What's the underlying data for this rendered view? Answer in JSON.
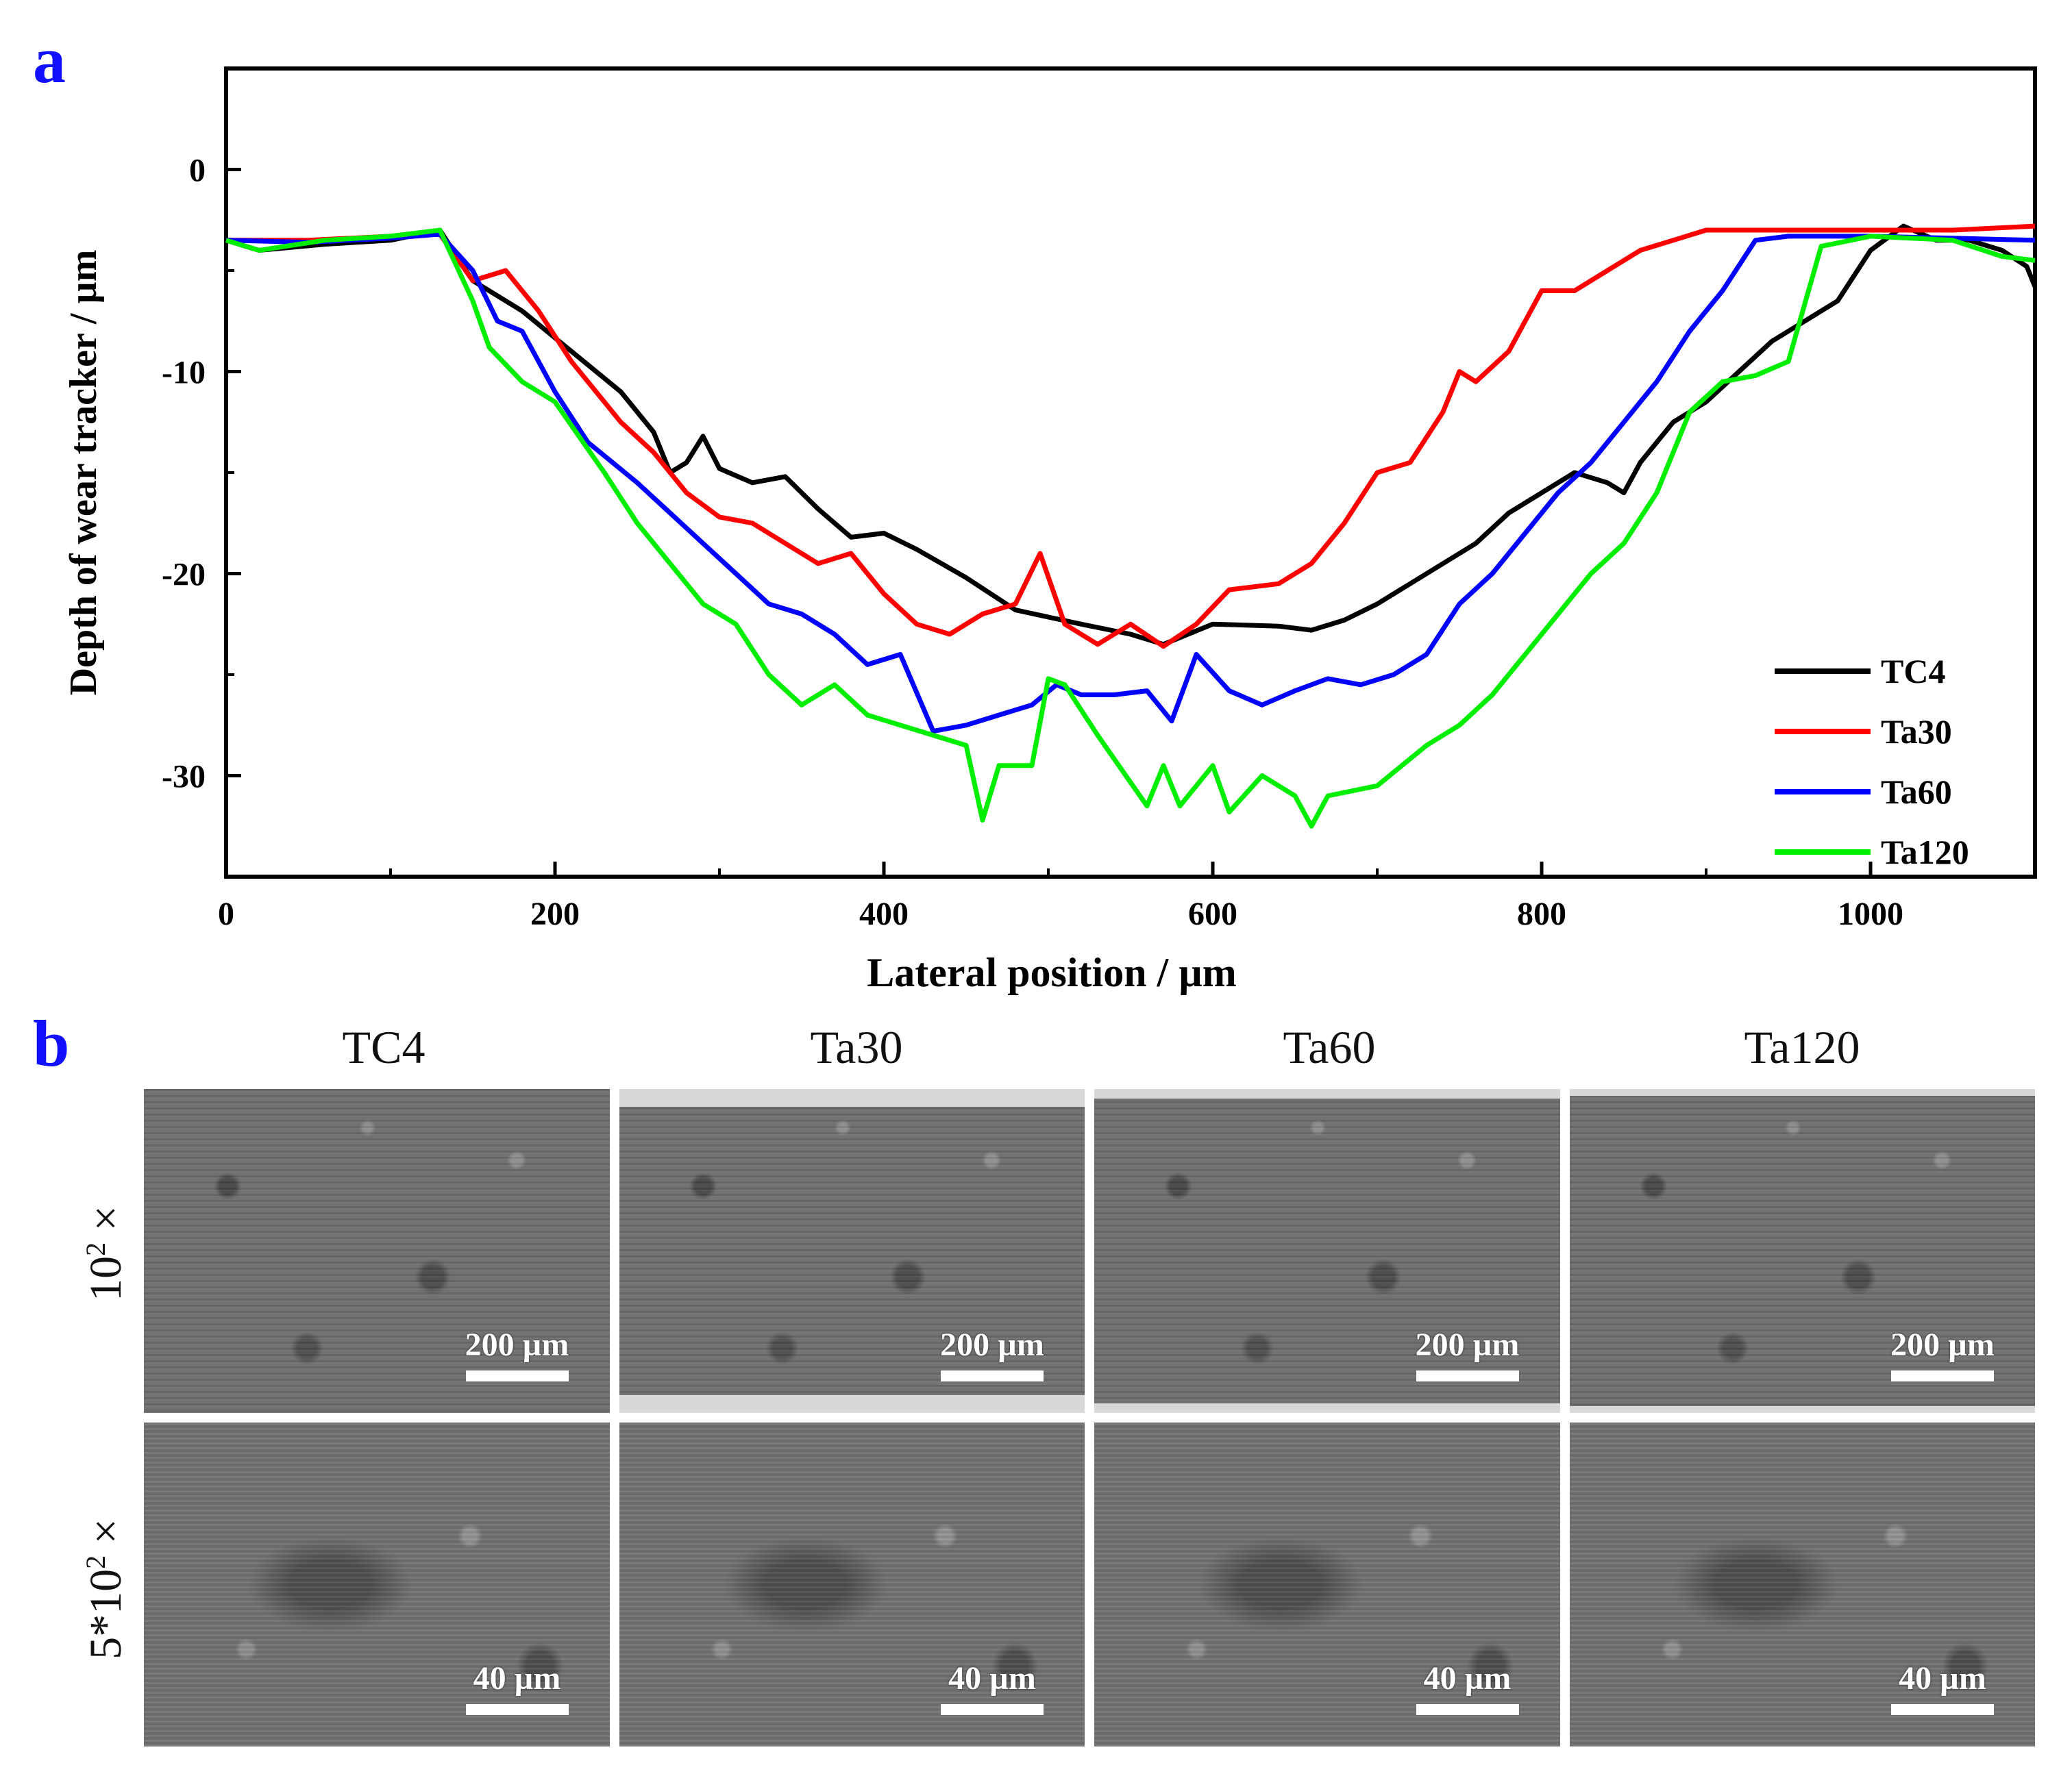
{
  "panels": {
    "a_label": "a",
    "b_label": "b"
  },
  "chart_data": {
    "type": "line",
    "title": "",
    "xlabel": "Lateral position / µm",
    "ylabel": "Depth of wear tracker / µm",
    "xlim": [
      0,
      1100
    ],
    "ylim": [
      -35,
      5
    ],
    "xticks": [
      0,
      200,
      400,
      600,
      800,
      1000
    ],
    "xtick_labels": [
      "0",
      "200",
      "400",
      "600",
      "800",
      "1000"
    ],
    "yticks": [
      0,
      -10,
      -20,
      -30
    ],
    "ytick_labels": [
      "0",
      "-10",
      "-20",
      "-30"
    ],
    "legend_position": "bottom-right",
    "series": [
      {
        "name": "TC4",
        "color": "#000000",
        "x": [
          0,
          20,
          60,
          100,
          130,
          150,
          180,
          210,
          240,
          260,
          270,
          280,
          290,
          300,
          320,
          340,
          360,
          380,
          400,
          420,
          450,
          480,
          520,
          550,
          570,
          600,
          640,
          660,
          680,
          700,
          720,
          740,
          760,
          780,
          800,
          820,
          840,
          850,
          860,
          880,
          900,
          920,
          940,
          960,
          980,
          1000,
          1020,
          1040,
          1060,
          1080,
          1095,
          1100
        ],
        "values": [
          -3.5,
          -4.0,
          -3.7,
          -3.5,
          -3.0,
          -5.5,
          -7.0,
          -9.0,
          -11.0,
          -13.0,
          -15.0,
          -14.5,
          -13.2,
          -14.8,
          -15.5,
          -15.2,
          -16.8,
          -18.2,
          -18.0,
          -18.8,
          -20.2,
          -21.8,
          -22.5,
          -23.0,
          -23.5,
          -22.5,
          -22.6,
          -22.8,
          -22.3,
          -21.5,
          -20.5,
          -19.5,
          -18.5,
          -17.0,
          -16.0,
          -15.0,
          -15.5,
          -16.0,
          -14.5,
          -12.5,
          -11.5,
          -10.0,
          -8.5,
          -7.5,
          -6.5,
          -4.0,
          -2.8,
          -3.5,
          -3.5,
          -4.0,
          -4.8,
          -5.8
        ]
      },
      {
        "name": "Ta30",
        "color": "#ff0000",
        "x": [
          0,
          50,
          100,
          130,
          150,
          170,
          190,
          210,
          240,
          260,
          280,
          300,
          320,
          340,
          360,
          380,
          400,
          420,
          440,
          460,
          480,
          495,
          510,
          530,
          550,
          570,
          590,
          610,
          640,
          660,
          680,
          700,
          720,
          740,
          750,
          760,
          780,
          800,
          820,
          840,
          860,
          880,
          900,
          950,
          1000,
          1050,
          1100
        ],
        "values": [
          -3.5,
          -3.5,
          -3.3,
          -3.2,
          -5.5,
          -5.0,
          -7.0,
          -9.5,
          -12.5,
          -14.0,
          -16.0,
          -17.2,
          -17.5,
          -18.5,
          -19.5,
          -19.0,
          -21.0,
          -22.5,
          -23.0,
          -22.0,
          -21.5,
          -19.0,
          -22.5,
          -23.5,
          -22.5,
          -23.6,
          -22.5,
          -20.8,
          -20.5,
          -19.5,
          -17.5,
          -15.0,
          -14.5,
          -12.0,
          -10.0,
          -10.5,
          -9.0,
          -6.0,
          -6.0,
          -5.0,
          -4.0,
          -3.5,
          -3.0,
          -3.0,
          -3.0,
          -3.0,
          -2.8
        ]
      },
      {
        "name": "Ta60",
        "color": "#0000ff",
        "x": [
          0,
          50,
          100,
          130,
          150,
          165,
          180,
          200,
          220,
          250,
          270,
          290,
          310,
          330,
          350,
          370,
          390,
          410,
          430,
          450,
          470,
          490,
          505,
          520,
          540,
          560,
          575,
          590,
          610,
          630,
          650,
          670,
          690,
          710,
          730,
          750,
          770,
          790,
          810,
          830,
          850,
          870,
          890,
          910,
          930,
          950,
          1000,
          1050,
          1100
        ],
        "values": [
          -3.5,
          -3.6,
          -3.4,
          -3.2,
          -5.0,
          -7.5,
          -8.0,
          -11.0,
          -13.5,
          -15.5,
          -17.0,
          -18.5,
          -20.0,
          -21.5,
          -22.0,
          -23.0,
          -24.5,
          -24.0,
          -27.8,
          -27.5,
          -27.0,
          -26.5,
          -25.5,
          -26.0,
          -26.0,
          -25.8,
          -27.3,
          -24.0,
          -25.8,
          -26.5,
          -25.8,
          -25.2,
          -25.5,
          -25.0,
          -24.0,
          -21.5,
          -20.0,
          -18.0,
          -16.0,
          -14.5,
          -12.5,
          -10.5,
          -8.0,
          -6.0,
          -3.5,
          -3.3,
          -3.3,
          -3.4,
          -3.5
        ]
      },
      {
        "name": "Ta120",
        "color": "#00ee00",
        "x": [
          0,
          20,
          60,
          100,
          130,
          150,
          160,
          180,
          200,
          230,
          250,
          270,
          290,
          310,
          330,
          350,
          370,
          390,
          410,
          430,
          450,
          460,
          470,
          490,
          500,
          510,
          530,
          560,
          570,
          580,
          600,
          610,
          630,
          650,
          660,
          670,
          700,
          730,
          750,
          770,
          790,
          810,
          830,
          850,
          870,
          890,
          910,
          930,
          950,
          970,
          1000,
          1050,
          1080,
          1100
        ],
        "values": [
          -3.5,
          -4.0,
          -3.5,
          -3.3,
          -3.0,
          -6.5,
          -8.8,
          -10.5,
          -11.5,
          -15.0,
          -17.5,
          -19.5,
          -21.5,
          -22.5,
          -25.0,
          -26.5,
          -25.5,
          -27.0,
          -27.5,
          -28.0,
          -28.5,
          -32.2,
          -29.5,
          -29.5,
          -25.2,
          -25.5,
          -28.0,
          -31.5,
          -29.5,
          -31.5,
          -29.5,
          -31.8,
          -30.0,
          -31.0,
          -32.5,
          -31.0,
          -30.5,
          -28.5,
          -27.5,
          -26.0,
          -24.0,
          -22.0,
          -20.0,
          -18.5,
          -16.0,
          -12.0,
          -10.5,
          -10.2,
          -9.5,
          -3.8,
          -3.3,
          -3.5,
          -4.3,
          -4.5
        ]
      }
    ]
  },
  "sem": {
    "columns": [
      "TC4",
      "Ta30",
      "Ta60",
      "Ta120"
    ],
    "rows": [
      {
        "label": "10",
        "sup": "2",
        "suffix": " ×",
        "scale": "200 µm"
      },
      {
        "label": "5*10",
        "sup": "2",
        "suffix": " ×",
        "scale": "40 µm"
      }
    ]
  }
}
